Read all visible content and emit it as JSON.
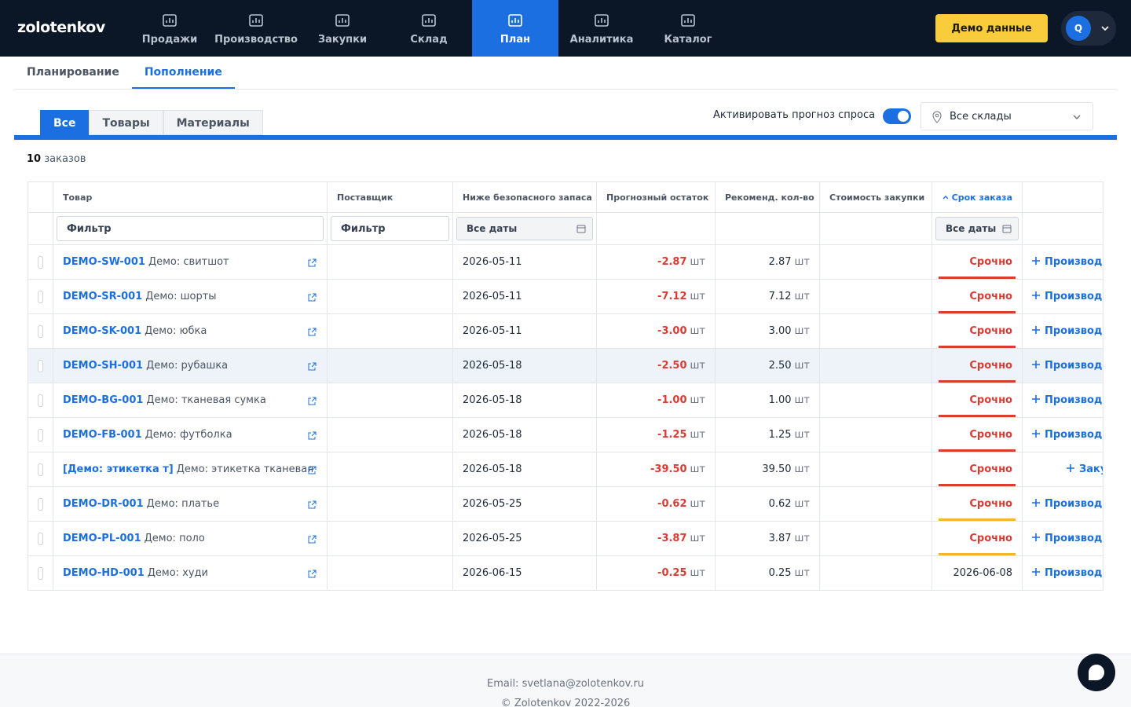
{
  "header": {
    "logo": "zolotenkov",
    "nav": [
      {
        "label": "Продажи",
        "active": false
      },
      {
        "label": "Производство",
        "active": false
      },
      {
        "label": "Закупки",
        "active": false
      },
      {
        "label": "Склад",
        "active": false
      },
      {
        "label": "План",
        "active": true
      },
      {
        "label": "Аналитика",
        "active": false
      },
      {
        "label": "Каталог",
        "active": false
      }
    ],
    "demo_button": "Демо данные",
    "avatar": "Q"
  },
  "subtabs": [
    {
      "label": "Планирование",
      "active": false
    },
    {
      "label": "Пополнение",
      "active": true
    }
  ],
  "segments": [
    {
      "label": "Все",
      "active": true
    },
    {
      "label": "Товары",
      "active": false
    },
    {
      "label": "Материалы",
      "active": false
    }
  ],
  "forecast_toggle": {
    "label": "Активировать прогноз спроса",
    "on": true
  },
  "warehouse_select": "Все склады",
  "summary": {
    "count": "10",
    "label": "заказов"
  },
  "table": {
    "columns": [
      "Товар",
      "Поставщик",
      "Ниже безопасного запаса",
      "Прогнозный остаток",
      "Рекоменд. кол-во",
      "Стоимость закупки",
      "Срок заказа"
    ],
    "filters": {
      "product": "Фильтр",
      "supplier": "Фильтр",
      "below_date": "Все даты",
      "deadline": "Все даты"
    },
    "rows": [
      {
        "sku": "DEMO-SW-001",
        "name": "Демо: свитшот",
        "below_date": "2026-05-11",
        "forecast": "-2.87",
        "unit": "шт",
        "recommended": "2.87",
        "deadline": "Срочно",
        "urgency_color": "#dc3b34",
        "action": "Производство",
        "highlighted": false
      },
      {
        "sku": "DEMO-SR-001",
        "name": "Демо: шорты",
        "below_date": "2026-05-11",
        "forecast": "-7.12",
        "unit": "шт",
        "recommended": "7.12",
        "deadline": "Срочно",
        "urgency_color": "#dc3b34",
        "action": "Производство",
        "highlighted": false
      },
      {
        "sku": "DEMO-SK-001",
        "name": "Демо: юбка",
        "below_date": "2026-05-11",
        "forecast": "-3.00",
        "unit": "шт",
        "recommended": "3.00",
        "deadline": "Срочно",
        "urgency_color": "#dc3b34",
        "action": "Производство",
        "highlighted": false
      },
      {
        "sku": "DEMO-SH-001",
        "name": "Демо: рубашка",
        "below_date": "2026-05-18",
        "forecast": "-2.50",
        "unit": "шт",
        "recommended": "2.50",
        "deadline": "Срочно",
        "urgency_color": "#dc3b34",
        "action": "Производство",
        "highlighted": true
      },
      {
        "sku": "DEMO-BG-001",
        "name": "Демо: тканевая сумка",
        "below_date": "2026-05-18",
        "forecast": "-1.00",
        "unit": "шт",
        "recommended": "1.00",
        "deadline": "Срочно",
        "urgency_color": "#dc3b34",
        "action": "Производство",
        "highlighted": false
      },
      {
        "sku": "DEMO-FB-001",
        "name": "Демо: футболка",
        "below_date": "2026-05-18",
        "forecast": "-1.25",
        "unit": "шт",
        "recommended": "1.25",
        "deadline": "Срочно",
        "urgency_color": "#dc3b34",
        "action": "Производство",
        "highlighted": false
      },
      {
        "sku": "[Демо: этикетка т]",
        "name": "Демо: этикетка тканевая",
        "below_date": "2026-05-18",
        "forecast": "-39.50",
        "unit": "шт",
        "recommended": "39.50",
        "deadline": "Срочно",
        "urgency_color": "#dc3b34",
        "action": "Закупить",
        "highlighted": false
      },
      {
        "sku": "DEMO-DR-001",
        "name": "Демо: платье",
        "below_date": "2026-05-25",
        "forecast": "-0.62",
        "unit": "шт",
        "recommended": "0.62",
        "deadline": "Срочно",
        "urgency_color": "#f2b824",
        "action": "Производство",
        "highlighted": false
      },
      {
        "sku": "DEMO-PL-001",
        "name": "Демо: поло",
        "below_date": "2026-05-25",
        "forecast": "-3.87",
        "unit": "шт",
        "recommended": "3.87",
        "deadline": "Срочно",
        "urgency_color": "#f2b824",
        "action": "Производство",
        "highlighted": false
      },
      {
        "sku": "DEMO-HD-001",
        "name": "Демо: худи",
        "below_date": "2026-06-15",
        "forecast": "-0.25",
        "unit": "шт",
        "recommended": "0.25",
        "deadline": "2026-06-08",
        "urgency_color": null,
        "action": "Производство",
        "highlighted": false
      }
    ]
  },
  "footer": {
    "email": "Email: svetlana@zolotenkov.ru",
    "copyright": "© Zolotenkov 2022-2026"
  }
}
